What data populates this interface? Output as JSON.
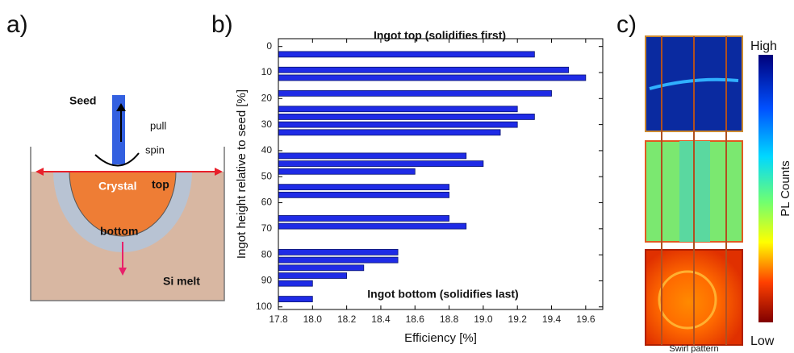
{
  "panels": {
    "a": {
      "label": "a)",
      "seed": "Seed",
      "pull": "pull",
      "spin": "spin",
      "crystal": "Crystal",
      "top": "top",
      "bottom": "bottom",
      "melt": "Si melt"
    },
    "b": {
      "label": "b)"
    },
    "c": {
      "label": "c)",
      "high": "High",
      "low": "Low",
      "colorbar_label": "PL Counts",
      "caption": "Swirl pattern"
    }
  },
  "chart_data": {
    "type": "hbar",
    "annotations": [
      "Ingot top (solidifies first)",
      "Ingot bottom (solidifies last)"
    ],
    "xlabel": "Efficiency [%]",
    "ylabel": "Ingot height relative to seed [%]",
    "y": [
      3,
      9,
      12,
      18,
      24,
      27,
      30,
      33,
      42,
      45,
      48,
      54,
      57,
      66,
      69,
      79,
      82,
      85,
      88,
      91,
      97
    ],
    "values": [
      19.3,
      19.5,
      19.6,
      19.4,
      19.2,
      19.3,
      19.2,
      19.1,
      18.9,
      19.0,
      18.6,
      18.8,
      18.8,
      18.8,
      18.9,
      18.5,
      18.5,
      18.3,
      18.2,
      18.0,
      18.0
    ],
    "color": "#1f2be6",
    "xlim": [
      17.8,
      19.7
    ],
    "ylim": [
      -3,
      101
    ],
    "y_inverted": true,
    "xticks": [
      17.8,
      {
        "value": 18,
        "label": "18.0"
      },
      18.2,
      18.4,
      18.6,
      18.8,
      {
        "value": 19,
        "label": "19.0"
      },
      19.2,
      19.4,
      19.6
    ],
    "yticks": [
      0,
      10,
      20,
      30,
      40,
      50,
      60,
      70,
      80,
      90,
      100
    ]
  }
}
